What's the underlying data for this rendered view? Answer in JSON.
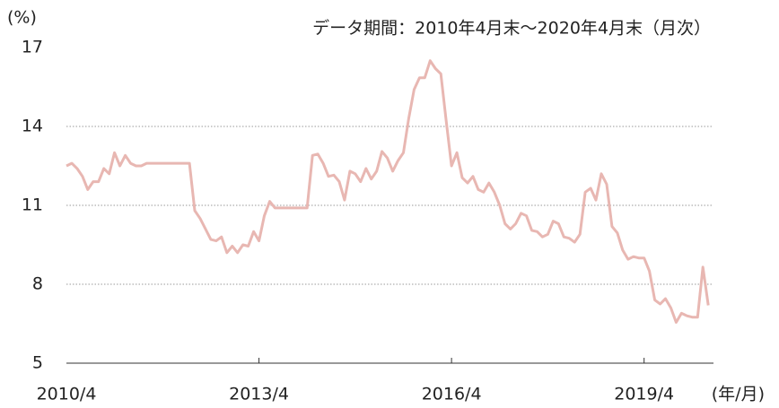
{
  "chart_data": {
    "type": "line",
    "y_unit_label": "(%)",
    "subtitle": "データ期間：2010年4月末～2020年4月末（月次）",
    "x_axis_label": "(年/月)",
    "categories": [
      "2010/4",
      null,
      null,
      null,
      null,
      null,
      null,
      null,
      null,
      null,
      null,
      null,
      null,
      null,
      null,
      null,
      null,
      null,
      null,
      null,
      null,
      null,
      null,
      null,
      null,
      null,
      null,
      null,
      null,
      null,
      null,
      null,
      null,
      null,
      null,
      null,
      "2013/4",
      null,
      null,
      null,
      null,
      null,
      null,
      null,
      null,
      null,
      null,
      null,
      null,
      null,
      null,
      null,
      null,
      null,
      null,
      null,
      null,
      null,
      null,
      null,
      null,
      null,
      null,
      null,
      null,
      null,
      null,
      null,
      null,
      null,
      null,
      null,
      "2016/4",
      null,
      null,
      null,
      null,
      null,
      null,
      null,
      null,
      null,
      null,
      null,
      null,
      null,
      null,
      null,
      null,
      null,
      null,
      null,
      null,
      null,
      null,
      null,
      null,
      null,
      null,
      null,
      null,
      null,
      null,
      null,
      null,
      null,
      null,
      null,
      "2019/4",
      null,
      null,
      null,
      null,
      null,
      null,
      null,
      null,
      null,
      null,
      null,
      null
    ],
    "series": [
      {
        "color": "#e8b7b2",
        "values": [
          12.5,
          12.6,
          12.4,
          12.1,
          11.6,
          11.9,
          11.9,
          12.4,
          12.2,
          13.0,
          12.5,
          12.9,
          12.6,
          12.5,
          12.5,
          12.6,
          12.6,
          12.6,
          12.6,
          12.6,
          12.6,
          12.6,
          12.6,
          12.6,
          10.8,
          10.5,
          10.1,
          9.7,
          9.65,
          9.8,
          9.2,
          9.45,
          9.2,
          9.5,
          9.45,
          10.0,
          9.65,
          10.6,
          11.15,
          10.9,
          10.9,
          10.9,
          10.9,
          10.9,
          10.9,
          10.9,
          12.9,
          12.95,
          12.6,
          12.1,
          12.15,
          11.9,
          11.2,
          12.3,
          12.2,
          11.9,
          12.4,
          12.0,
          12.3,
          13.05,
          12.8,
          12.3,
          12.7,
          13.0,
          14.3,
          15.4,
          15.85,
          15.85,
          16.5,
          16.2,
          16.0,
          14.2,
          12.5,
          13.0,
          12.05,
          11.85,
          12.1,
          11.6,
          11.5,
          11.85,
          11.5,
          11.0,
          10.3,
          10.1,
          10.3,
          10.7,
          10.6,
          10.05,
          10.0,
          9.8,
          9.9,
          10.4,
          10.3,
          9.8,
          9.75,
          9.6,
          9.9,
          11.5,
          11.65,
          11.2,
          12.2,
          11.8,
          10.2,
          9.95,
          9.3,
          8.95,
          9.05,
          9.0,
          9.0,
          8.5,
          7.4,
          7.25,
          7.45,
          7.1,
          6.55,
          6.9,
          6.8,
          6.75,
          6.75,
          8.65,
          7.2
        ]
      }
    ],
    "ylim": [
      5,
      17
    ],
    "yticks": [
      5,
      8,
      11,
      14,
      17
    ],
    "grid": true
  }
}
